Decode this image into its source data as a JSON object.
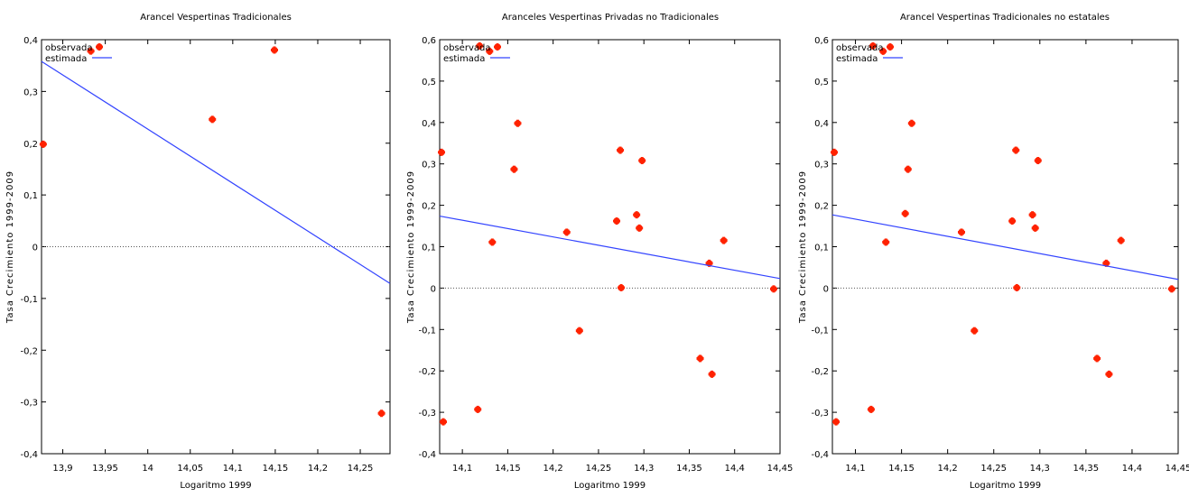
{
  "chart_data": [
    {
      "type": "scatter",
      "title": "Arancel Vespertinas Tradicionales",
      "xlabel": "Logaritmo 1999",
      "ylabel": "Tasa Crecimiento 1999-2009",
      "xlim": [
        13.875,
        14.285
      ],
      "ylim": [
        -0.4,
        0.4
      ],
      "xticks": [
        "13,9",
        "13,95",
        "14",
        "14,05",
        "14,1",
        "14,15",
        "14,2",
        "14,25"
      ],
      "xtick_values": [
        13.9,
        13.95,
        14.0,
        14.05,
        14.1,
        14.15,
        14.2,
        14.25
      ],
      "yticks": [
        "-0,4",
        "-0,3",
        "-0,2",
        "-0,1",
        "0",
        "0,1",
        "0,2",
        "0,3",
        "0,4"
      ],
      "ytick_values": [
        -0.4,
        -0.3,
        -0.2,
        -0.1,
        0,
        0.1,
        0.2,
        0.3,
        0.4
      ],
      "grid": false,
      "zero_line": true,
      "legend_position": "top-left",
      "series": [
        {
          "name": "observada",
          "kind": "points",
          "color": "#ff2200",
          "x": [
            13.877,
            13.933,
            14.076,
            14.149,
            14.275
          ],
          "y": [
            0.198,
            0.378,
            0.246,
            0.38,
            -0.322
          ]
        },
        {
          "name": "estimada",
          "kind": "line",
          "color": "#3344ff",
          "x": [
            13.875,
            14.285
          ],
          "y": [
            0.358,
            -0.071
          ]
        }
      ]
    },
    {
      "type": "scatter",
      "title": "Aranceles Vespertinas Privadas no Tradicionales",
      "xlabel": "Logaritmo 1999",
      "ylabel": "Tasa Crecimiento 1999-2009",
      "xlim": [
        14.075,
        14.45
      ],
      "ylim": [
        -0.4,
        0.6
      ],
      "xticks": [
        "14,1",
        "14,15",
        "14,2",
        "14,25",
        "14,3",
        "14,35",
        "14,4",
        "14,45"
      ],
      "xtick_values": [
        14.1,
        14.15,
        14.2,
        14.25,
        14.3,
        14.35,
        14.4,
        14.45
      ],
      "yticks": [
        "-0,4",
        "-0,3",
        "-0,2",
        "-0,1",
        "0",
        "0,1",
        "0,2",
        "0,3",
        "0,4",
        "0,5",
        "0,6"
      ],
      "ytick_values": [
        -0.4,
        -0.3,
        -0.2,
        -0.1,
        0,
        0.1,
        0.2,
        0.3,
        0.4,
        0.5,
        0.6
      ],
      "grid": false,
      "zero_line": true,
      "legend_position": "top-left",
      "series": [
        {
          "name": "observada",
          "kind": "points",
          "color": "#ff2200",
          "x": [
            14.077,
            14.079,
            14.117,
            14.119,
            14.13,
            14.133,
            14.157,
            14.161,
            14.215,
            14.229,
            14.27,
            14.274,
            14.275,
            14.292,
            14.295,
            14.298,
            14.362,
            14.372,
            14.375,
            14.388,
            14.443
          ],
          "y": [
            0.328,
            -0.323,
            -0.293,
            0.585,
            0.572,
            0.111,
            0.287,
            0.398,
            0.135,
            -0.103,
            0.162,
            0.333,
            0.001,
            0.177,
            0.145,
            0.308,
            -0.17,
            0.06,
            -0.208,
            0.115,
            -0.002
          ]
        },
        {
          "name": "estimada",
          "kind": "line",
          "color": "#3344ff",
          "x": [
            14.075,
            14.45
          ],
          "y": [
            0.174,
            0.023
          ]
        }
      ]
    },
    {
      "type": "scatter",
      "title": "Arancel Vespertinas Tradicionales no estatales",
      "xlabel": "Logaritmo 1999",
      "ylabel": "Tasa Crecimiento 1999-2009",
      "xlim": [
        14.075,
        14.45
      ],
      "ylim": [
        -0.4,
        0.6
      ],
      "xticks": [
        "14,1",
        "14,15",
        "14,2",
        "14,25",
        "14,3",
        "14,35",
        "14,4",
        "14,45"
      ],
      "xtick_values": [
        14.1,
        14.15,
        14.2,
        14.25,
        14.3,
        14.35,
        14.4,
        14.45
      ],
      "yticks": [
        "-0,4",
        "-0,3",
        "-0,2",
        "-0,1",
        "0",
        "0,1",
        "0,2",
        "0,3",
        "0,4",
        "0,5",
        "0,6"
      ],
      "ytick_values": [
        -0.4,
        -0.3,
        -0.2,
        -0.1,
        0,
        0.1,
        0.2,
        0.3,
        0.4,
        0.5,
        0.6
      ],
      "grid": false,
      "zero_line": true,
      "legend_position": "top-left",
      "series": [
        {
          "name": "observada",
          "kind": "points",
          "color": "#ff2200",
          "x": [
            14.077,
            14.079,
            14.117,
            14.119,
            14.13,
            14.133,
            14.154,
            14.157,
            14.161,
            14.215,
            14.229,
            14.27,
            14.274,
            14.275,
            14.292,
            14.295,
            14.298,
            14.362,
            14.372,
            14.375,
            14.388,
            14.443
          ],
          "y": [
            0.328,
            -0.323,
            -0.293,
            0.585,
            0.572,
            0.111,
            0.18,
            0.287,
            0.398,
            0.135,
            -0.103,
            0.162,
            0.333,
            0.001,
            0.177,
            0.145,
            0.308,
            -0.17,
            0.06,
            -0.208,
            0.115,
            -0.002
          ]
        },
        {
          "name": "estimada",
          "kind": "line",
          "color": "#3344ff",
          "x": [
            14.075,
            14.45
          ],
          "y": [
            0.177,
            0.021
          ]
        }
      ]
    }
  ]
}
